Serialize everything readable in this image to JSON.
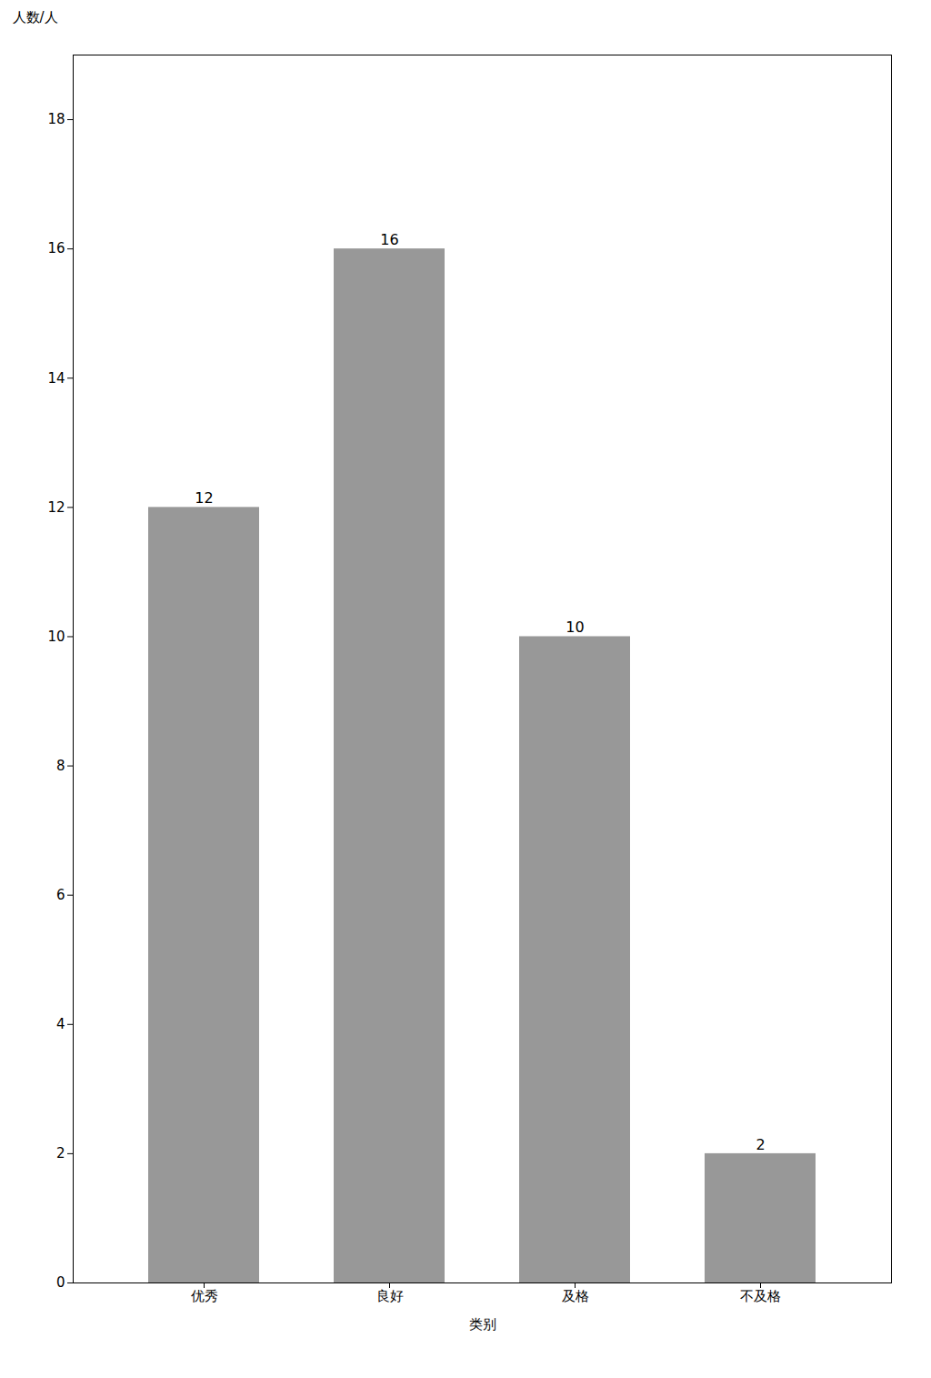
{
  "chart_data": {
    "type": "bar",
    "categories": [
      "优秀",
      "良好",
      "及格",
      "不及格"
    ],
    "values": [
      12,
      16,
      10,
      2
    ],
    "color": "#989898",
    "x_label": "类别",
    "y_label": "人数/人",
    "ylim": [
      0,
      19
    ],
    "yticks": [
      0,
      2,
      4,
      6,
      8,
      10,
      12,
      14,
      16,
      18
    ],
    "data_labels": true
  }
}
